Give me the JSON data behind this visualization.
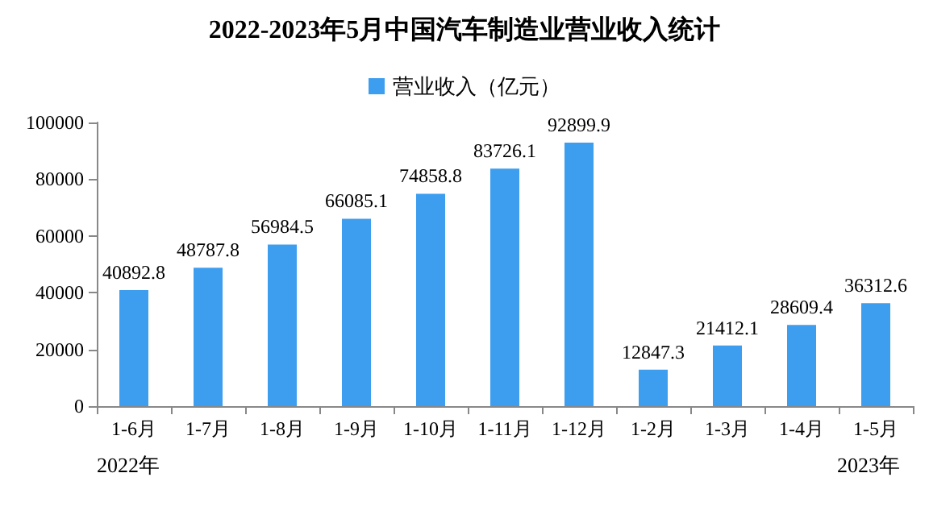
{
  "chart_data": {
    "type": "bar",
    "title": "2022-2023年5月中国汽车制造业营业收入统计",
    "categories": [
      "1-6月",
      "1-7月",
      "1-8月",
      "1-9月",
      "1-10月",
      "1-11月",
      "1-12月",
      "1-2月",
      "1-3月",
      "1-4月",
      "1-5月"
    ],
    "series": [
      {
        "name": "营业收入（亿元）",
        "color": "#3d9ef0",
        "values": [
          40892.8,
          48787.8,
          56984.5,
          66085.1,
          74858.8,
          83726.1,
          92899.9,
          12847.3,
          21412.1,
          28609.4,
          36312.6
        ]
      }
    ],
    "ylim": [
      0,
      100000
    ],
    "yticks": [
      0,
      20000,
      40000,
      60000,
      80000,
      100000
    ],
    "data_labels": true,
    "grid": false,
    "legend": "top",
    "annotations": [
      "2022年",
      "2023年"
    ]
  }
}
